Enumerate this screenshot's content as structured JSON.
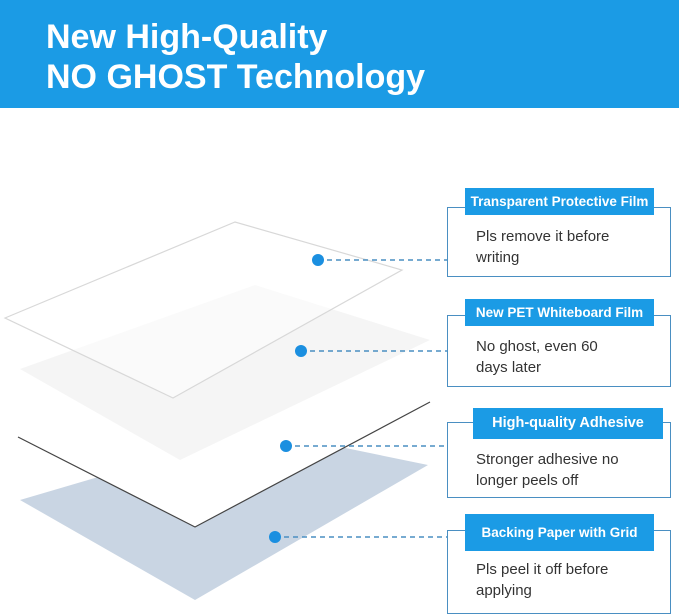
{
  "header": {
    "line1": "New High-Quality",
    "line2": "NO GHOST Technology",
    "color": "#1b9be5"
  },
  "layers": [
    {
      "title": "Transparent Protective Film",
      "desc1": "Pls remove it before",
      "desc2": "writing"
    },
    {
      "title": "New PET Whiteboard Film",
      "desc1": "No ghost, even 60",
      "desc2": "days later"
    },
    {
      "title": "High-quality Adhesive",
      "desc1": "Stronger adhesive no",
      "desc2": "longer peels off"
    },
    {
      "title": "Backing Paper with Grid",
      "desc1": "Pls peel it off before",
      "desc2": "applying"
    }
  ]
}
